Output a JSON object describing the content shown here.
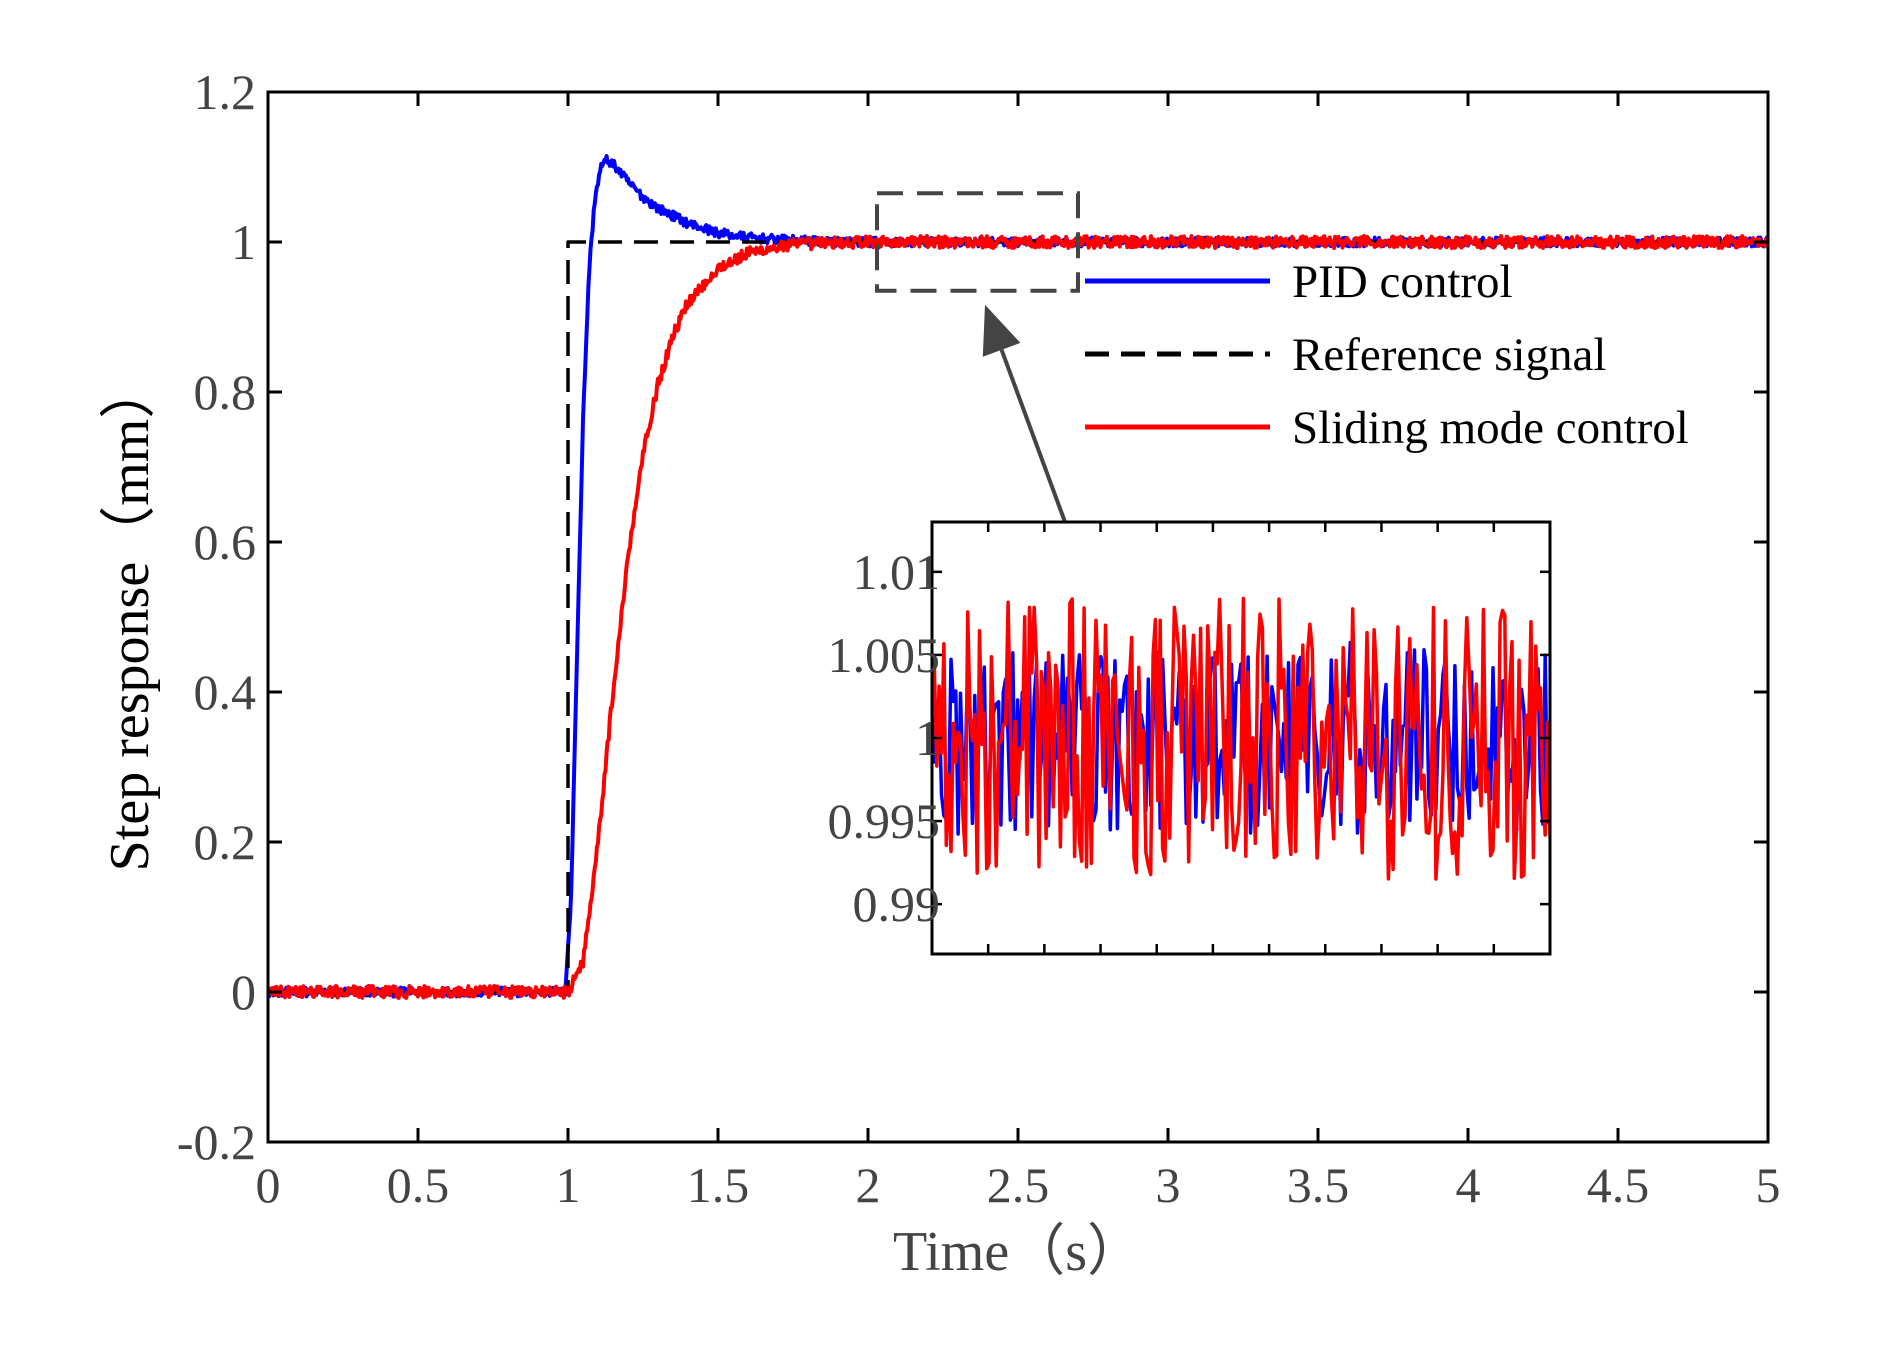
{
  "chart_data": {
    "type": "line",
    "xlabel": "Time（s）",
    "ylabel": "Step response（mm）",
    "xlim": [
      0,
      5
    ],
    "ylim": [
      -0.2,
      1.2
    ],
    "xticks": [
      "0",
      "0.5",
      "1",
      "1.5",
      "2",
      "2.5",
      "3",
      "3.5",
      "4",
      "4.5",
      "5"
    ],
    "yticks": [
      "-0.2",
      "0",
      "0.2",
      "0.4",
      "0.6",
      "0.8",
      "1",
      "1.2"
    ],
    "grid": false,
    "legend_position": "right, beside the zoom box",
    "series": [
      {
        "name": "PID control",
        "color": "#0000ff",
        "style": "solid",
        "points": [
          [
            0,
            0
          ],
          [
            0.99,
            0
          ],
          [
            1.01,
            0.12
          ],
          [
            1.03,
            0.45
          ],
          [
            1.05,
            0.76
          ],
          [
            1.07,
            0.96
          ],
          [
            1.09,
            1.06
          ],
          [
            1.11,
            1.1
          ],
          [
            1.13,
            1.11
          ],
          [
            1.16,
            1.1
          ],
          [
            1.2,
            1.08
          ],
          [
            1.25,
            1.06
          ],
          [
            1.3,
            1.045
          ],
          [
            1.4,
            1.025
          ],
          [
            1.5,
            1.012
          ],
          [
            1.6,
            1.006
          ],
          [
            1.7,
            1.003
          ],
          [
            1.85,
            1.001
          ],
          [
            2.0,
            1.0
          ],
          [
            5.0,
            1.0
          ]
        ],
        "noise_amplitude": 0.006
      },
      {
        "name": "Reference signal",
        "color": "#000000",
        "style": "dashed",
        "points": [
          [
            0,
            0
          ],
          [
            1.0,
            0
          ],
          [
            1.0,
            1.0
          ],
          [
            5.0,
            1.0
          ]
        ]
      },
      {
        "name": "Sliding mode control",
        "color": "#ff0000",
        "style": "solid",
        "points": [
          [
            0,
            0
          ],
          [
            1.0,
            0
          ],
          [
            1.05,
            0.04
          ],
          [
            1.1,
            0.2
          ],
          [
            1.15,
            0.4
          ],
          [
            1.2,
            0.58
          ],
          [
            1.25,
            0.72
          ],
          [
            1.3,
            0.81
          ],
          [
            1.35,
            0.875
          ],
          [
            1.4,
            0.92
          ],
          [
            1.5,
            0.965
          ],
          [
            1.6,
            0.985
          ],
          [
            1.7,
            0.994
          ],
          [
            1.8,
            0.998
          ],
          [
            2.0,
            1.0
          ],
          [
            5.0,
            1.0
          ]
        ],
        "noise_amplitude": 0.008
      }
    ],
    "zoom_region": {
      "x": [
        2.03,
        2.7
      ],
      "y": [
        0.935,
        1.065
      ]
    },
    "inset": {
      "ylim": [
        0.987,
        1.013
      ],
      "yticks": [
        "1.01",
        "1.005",
        "1",
        "0.995",
        "0.99"
      ],
      "x_minor_ticks": 11,
      "series_order": [
        "PID control",
        "Sliding mode control"
      ],
      "samples": 260
    },
    "colors": {
      "axis": "#000000",
      "tick_text": "#444444",
      "zoom_box": "#444444"
    }
  }
}
